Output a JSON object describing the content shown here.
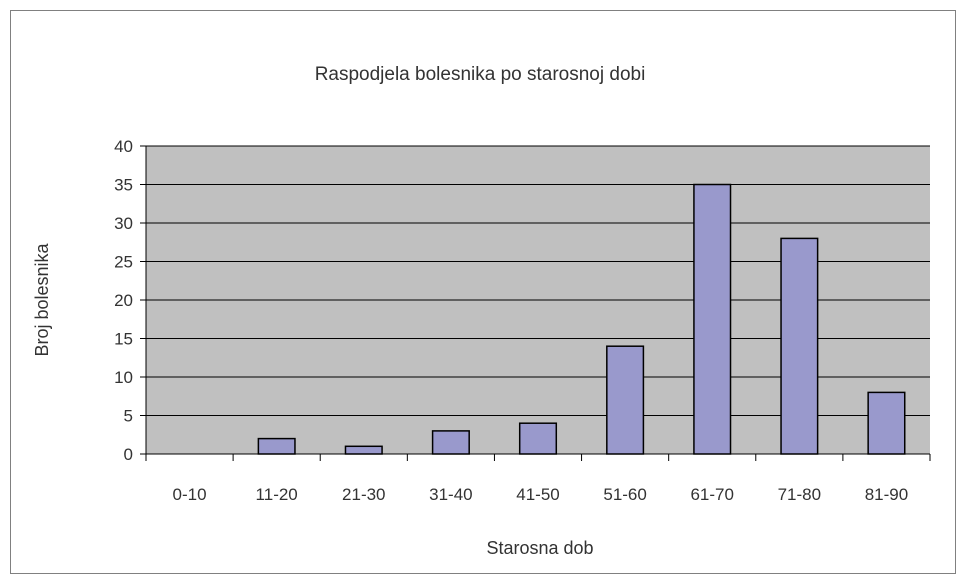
{
  "chart_data": {
    "type": "bar",
    "title": "Raspodjela bolesnika po starosnoj dobi",
    "xlabel": "Starosna dob",
    "ylabel": "Broj bolesnika",
    "categories": [
      "0-10",
      "11-20",
      "21-30",
      "31-40",
      "41-50",
      "51-60",
      "61-70",
      "71-80",
      "81-90"
    ],
    "values": [
      0,
      2,
      1,
      3,
      4,
      14,
      35,
      28,
      8
    ],
    "ylim": [
      0,
      40
    ],
    "yticks": [
      0,
      5,
      10,
      15,
      20,
      25,
      30,
      35,
      40
    ],
    "grid": true,
    "legend": "none",
    "colors": {
      "bar": "#9999cc",
      "bar_stroke": "#000000",
      "plot_bg": "#c0c0c0",
      "gridline": "#000000",
      "text": "#333333"
    }
  }
}
